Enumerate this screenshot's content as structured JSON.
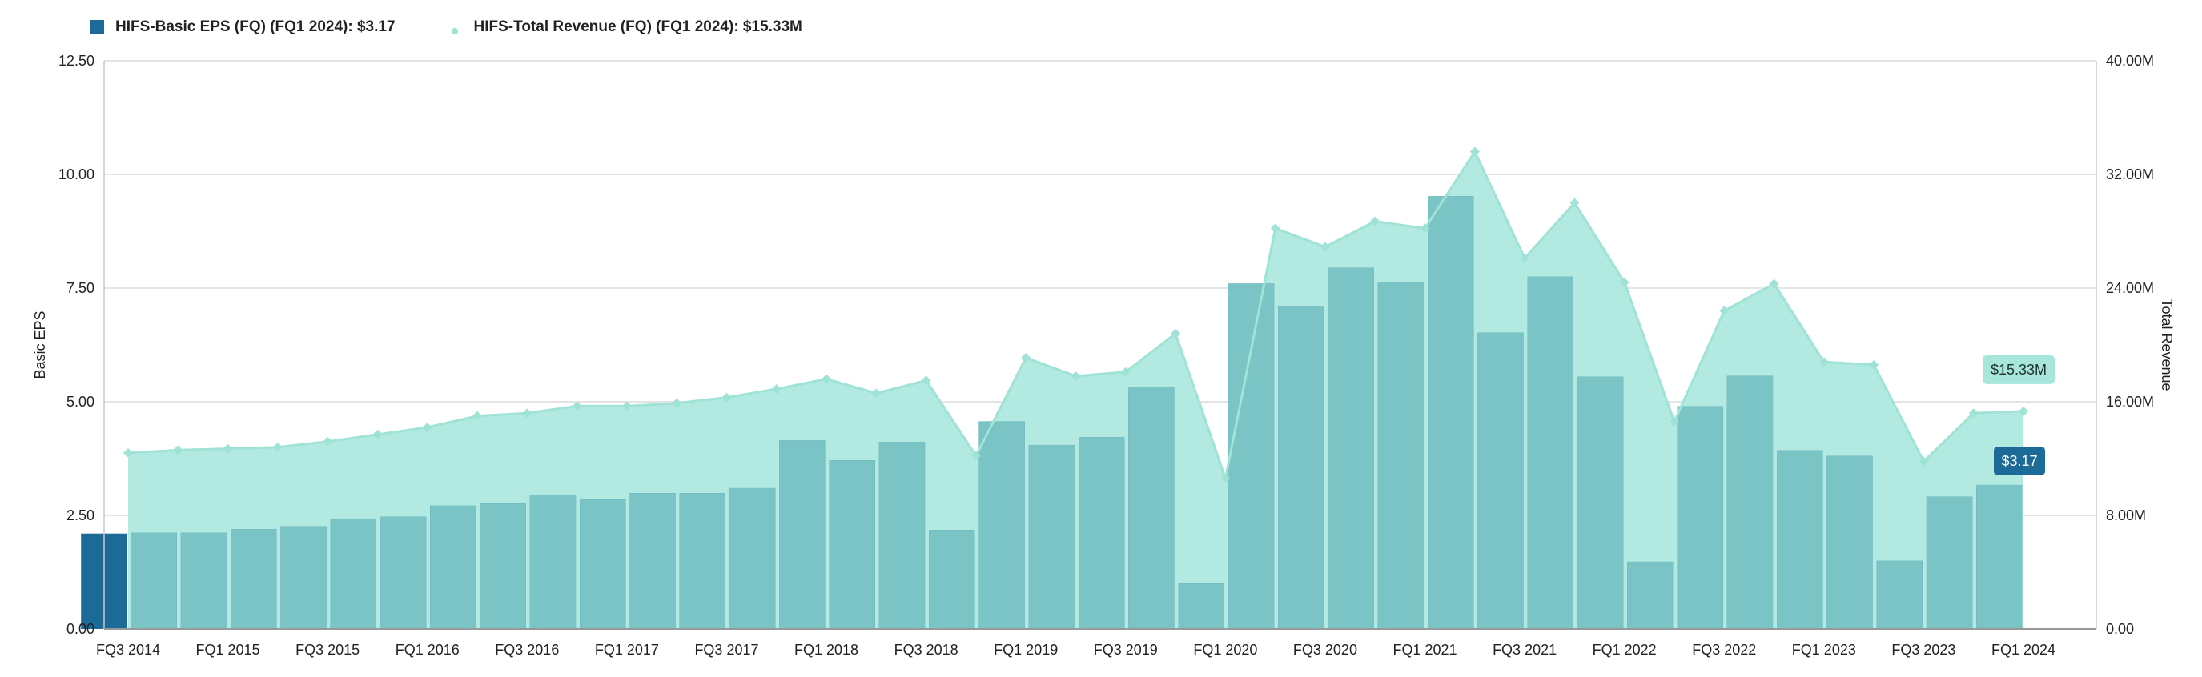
{
  "legend": {
    "eps_label": "HIFS-Basic EPS (FQ) (FQ1 2024): $3.17",
    "revenue_label": "HIFS-Total Revenue (FQ) (FQ1 2024): $15.33M"
  },
  "colors": {
    "eps_bar": "#1c6a98",
    "eps_bar_overlap": "#7bc4c6",
    "revenue_area": "#b2e9e0",
    "revenue_line": "#9fe3d6",
    "revenue_callout_bg": "#a6e6db",
    "grid": "#dcdcdc"
  },
  "chart_data": {
    "type": "bar",
    "x_tick_labels": [
      "FQ3 2014",
      "FQ1 2015",
      "FQ3 2015",
      "FQ1 2016",
      "FQ3 2016",
      "FQ1 2017",
      "FQ3 2017",
      "FQ1 2018",
      "FQ3 2018",
      "FQ1 2019",
      "FQ3 2019",
      "FQ1 2020",
      "FQ3 2020",
      "FQ1 2021",
      "FQ3 2021",
      "FQ1 2022",
      "FQ3 2022",
      "FQ1 2023",
      "FQ3 2023",
      "FQ1 2024"
    ],
    "y_left": {
      "label": "Basic EPS",
      "range": [
        0,
        12.5
      ],
      "ticks": [
        "0.00",
        "2.50",
        "5.00",
        "7.50",
        "10.00",
        "12.50"
      ]
    },
    "y_right": {
      "label": "Total Revenue",
      "range": [
        0,
        40
      ],
      "unit": "M",
      "ticks": [
        "0.00",
        "8.00M",
        "16.00M",
        "24.00M",
        "32.00M",
        "40.00M"
      ]
    },
    "series": [
      {
        "name": "HIFS-Basic EPS (FQ)",
        "axis": "left",
        "type": "bar",
        "values": [
          2.1,
          2.12,
          2.12,
          2.2,
          2.26,
          2.43,
          2.47,
          2.72,
          2.76,
          2.94,
          2.85,
          2.99,
          2.99,
          3.1,
          4.15,
          3.71,
          4.12,
          2.18,
          4.57,
          4.05,
          4.22,
          5.32,
          1.0,
          7.6,
          7.1,
          7.95,
          7.63,
          9.52,
          6.52,
          7.75,
          5.55,
          1.48,
          4.9,
          5.57,
          3.93,
          3.81,
          1.5,
          2.91,
          3.17
        ]
      },
      {
        "name": "HIFS-Total Revenue (FQ)",
        "axis": "right",
        "type": "area",
        "values": [
          12.4,
          12.6,
          12.7,
          12.8,
          13.2,
          13.7,
          14.2,
          15.0,
          15.2,
          15.7,
          15.7,
          15.9,
          16.3,
          16.9,
          17.6,
          16.6,
          17.5,
          12.2,
          19.1,
          17.8,
          18.1,
          20.8,
          10.6,
          28.2,
          26.9,
          28.7,
          28.2,
          33.6,
          26.1,
          30.0,
          24.4,
          14.6,
          22.4,
          24.3,
          18.8,
          18.6,
          11.8,
          15.2,
          15.33
        ]
      }
    ],
    "annotations": [
      "$15.33M",
      "$3.17"
    ],
    "grid": true,
    "legend_position": "top-left"
  }
}
